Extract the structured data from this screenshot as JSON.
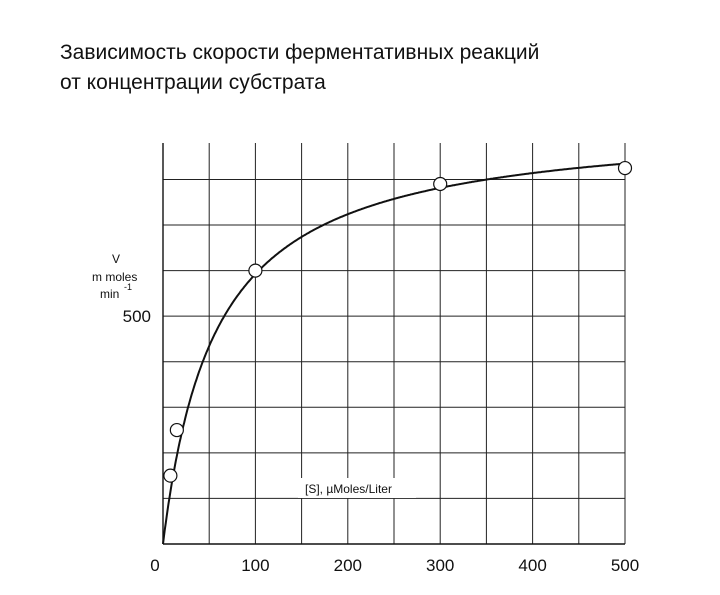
{
  "title_lines": [
    "Зависимость скорости ферментативных реакций",
    "от концентрации субстрата"
  ],
  "chart_data": {
    "type": "scatter",
    "title": "Зависимость скорости ферментативных реакций от концентрации субстрата",
    "xlabel": "[S], µMoles/Liter",
    "ylabel_lines": [
      "V",
      "m moles",
      "min",
      "-1"
    ],
    "xlim": [
      0,
      500
    ],
    "ylim": [
      0,
      880
    ],
    "x_ticks": [
      "0",
      "100",
      "200",
      "300",
      "400",
      "500"
    ],
    "y_ticks": [
      "500"
    ],
    "grid": true,
    "series": [
      {
        "points": [
          {
            "x": 8,
            "y": 150
          },
          {
            "x": 15,
            "y": 250
          },
          {
            "x": 100,
            "y": 600
          },
          {
            "x": 300,
            "y": 790
          },
          {
            "x": 500,
            "y": 825
          }
        ]
      }
    ],
    "curve": {
      "type": "michaelis-menten",
      "vmax": 930,
      "km": 57
    }
  }
}
